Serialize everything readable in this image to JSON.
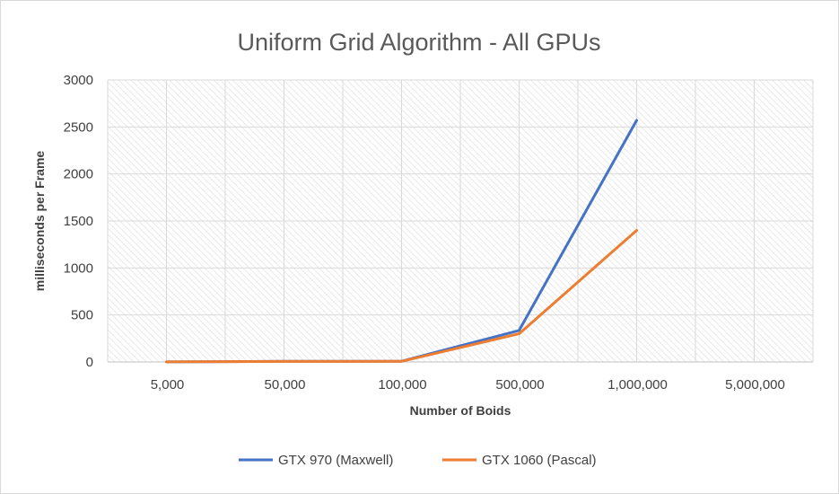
{
  "chart_data": {
    "type": "line",
    "title": "Uniform Grid Algorithm - All GPUs",
    "xlabel": "Number of Boids",
    "ylabel": "milliseconds per Frame",
    "categories": [
      "5,000",
      "50,000",
      "100,000",
      "500,000",
      "1,000,000",
      "5,000,000"
    ],
    "y_ticks": [
      "0",
      "500",
      "1000",
      "1500",
      "2000",
      "2500",
      "3000"
    ],
    "ylim": [
      0,
      3000
    ],
    "grid": true,
    "legend_position": "bottom",
    "series": [
      {
        "name": "GTX 970 (Maxwell)",
        "color": "#4472c4",
        "values": [
          1,
          7,
          8,
          335,
          2570,
          null
        ]
      },
      {
        "name": "GTX 1060 (Pascal)",
        "color": "#ed7d31",
        "values": [
          1,
          6,
          7,
          300,
          1400,
          null
        ]
      }
    ]
  }
}
